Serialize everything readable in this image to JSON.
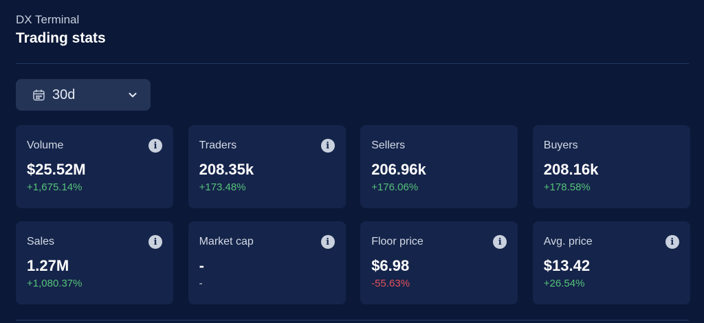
{
  "header": {
    "subtitle": "DX Terminal",
    "title": "Trading stats"
  },
  "period": {
    "value": "30d",
    "icon": "calendar-icon"
  },
  "colors": {
    "positive": "#55c27a",
    "negative": "#e4515c",
    "background": "#0b1838",
    "card": "#15244a"
  },
  "stats": [
    {
      "label": "Volume",
      "value": "$25.52M",
      "change": "+1,675.14%",
      "trend": "pos"
    },
    {
      "label": "Traders",
      "value": "208.35k",
      "change": "+173.48%",
      "trend": "pos"
    },
    {
      "label": "Sellers",
      "value": "206.96k",
      "change": "+176.06%",
      "trend": "pos"
    },
    {
      "label": "Buyers",
      "value": "208.16k",
      "change": "+178.58%",
      "trend": "pos"
    },
    {
      "label": "Sales",
      "value": "1.27M",
      "change": "+1,080.37%",
      "trend": "pos"
    },
    {
      "label": "Market cap",
      "value": "-",
      "change": "-",
      "trend": "neu"
    },
    {
      "label": "Floor price",
      "value": "$6.98",
      "change": "-55.63%",
      "trend": "neg"
    },
    {
      "label": "Avg. price",
      "value": "$13.42",
      "change": "+26.54%",
      "trend": "pos"
    }
  ]
}
